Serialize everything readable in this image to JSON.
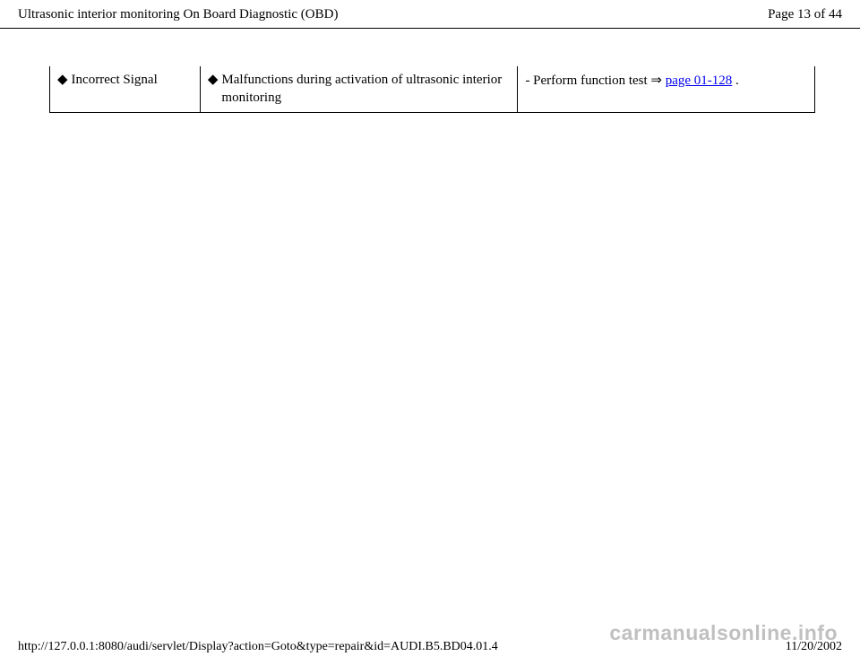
{
  "header": {
    "title": "Ultrasonic interior monitoring On Board Diagnostic (OBD)",
    "page_indicator": "Page 13 of 44"
  },
  "table": {
    "row": {
      "col1_text": "Incorrect Signal",
      "col2_text": "Malfunctions during activation of ultrasonic interior monitoring",
      "col3_prefix": "- Perform function test  ",
      "col3_link": "page 01-128",
      "col3_suffix": " ."
    },
    "bullet_glyph": "◆",
    "arrow_glyph": "⇒"
  },
  "footer": {
    "url": "http://127.0.0.1:8080/audi/servlet/Display?action=Goto&type=repair&id=AUDI.B5.BD04.01.4",
    "date": "11/20/2002"
  },
  "watermark": "carmanualsonline.info"
}
